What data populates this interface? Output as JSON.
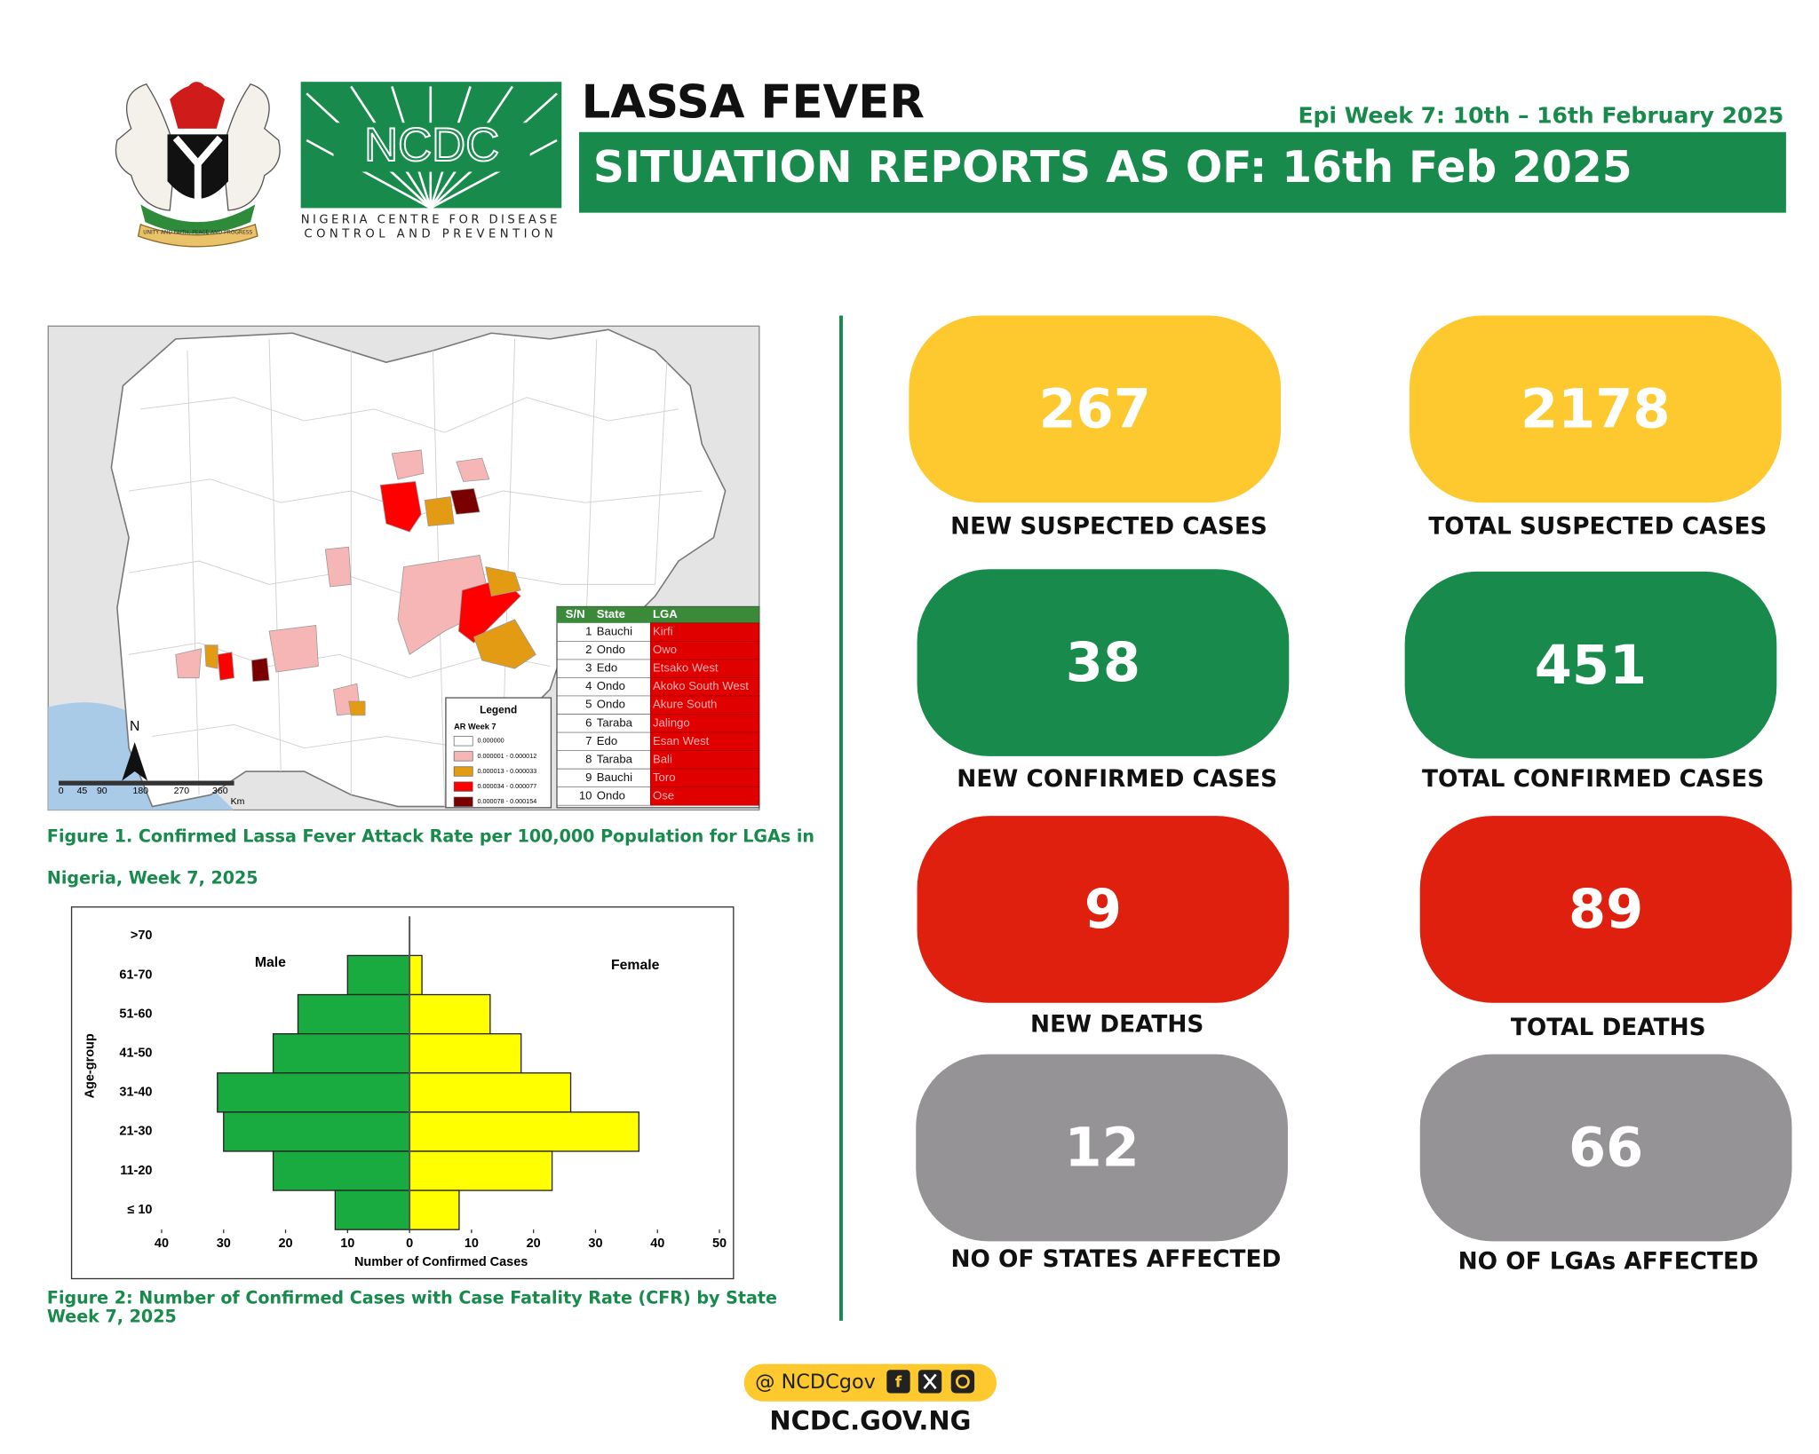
{
  "header": {
    "org_line1": "NIGERIA CENTRE FOR DISEASE",
    "org_line2": "CONTROL AND PREVENTION",
    "logo_text": "NCDC",
    "motto": "UNITY AND FAITH, PEACE AND PROGRESS",
    "title": "LASSA FEVER",
    "epi_week": "Epi Week 7: 10th – 16th February 2025",
    "banner": "SITUATION REPORTS AS OF: 16th Feb 2025"
  },
  "map": {
    "north": "N",
    "scale": [
      "0",
      "45",
      "90",
      "180",
      "270",
      "360",
      "Km"
    ],
    "legend": {
      "title": "Legend",
      "subtitle": "AR Week 7",
      "items": [
        {
          "label": "0.000000",
          "color": "#ffffff"
        },
        {
          "label": "0.000001 - 0.000012",
          "color": "#f7b6b6"
        },
        {
          "label": "0.000013 - 0.000033",
          "color": "#e39b14"
        },
        {
          "label": "0.000034 - 0.000077",
          "color": "#ff0000"
        },
        {
          "label": "0.000078 - 0.000154",
          "color": "#7a0000"
        }
      ]
    },
    "table": {
      "headers": [
        "S/N",
        "State",
        "LGA"
      ],
      "rows": [
        [
          1,
          "Bauchi",
          "Kirfi"
        ],
        [
          2,
          "Ondo",
          "Owo"
        ],
        [
          3,
          "Edo",
          "Etsako West"
        ],
        [
          4,
          "Ondo",
          "Akoko South West"
        ],
        [
          5,
          "Ondo",
          "Akure South"
        ],
        [
          6,
          "Taraba",
          "Jalingo"
        ],
        [
          7,
          "Edo",
          "Esan West"
        ],
        [
          8,
          "Taraba",
          "Bali"
        ],
        [
          9,
          "Bauchi",
          "Toro"
        ],
        [
          10,
          "Ondo",
          "Ose"
        ]
      ]
    }
  },
  "figure1_caption": [
    "Figure 1. Confirmed Lassa Fever Attack Rate per 100,000 Population for LGAs in",
    "Nigeria, Week 7, 2025"
  ],
  "chart_data": {
    "type": "pyramid",
    "x_label": "Number of Confirmed Cases",
    "y_label": "Age-group",
    "categories": [
      ">70",
      "61-70",
      "51-60",
      "41-50",
      "31-40",
      "21-30",
      "11-20",
      "≤ 10"
    ],
    "series": [
      {
        "name": "Male",
        "color": "#1aab40",
        "values": [
          0,
          10,
          18,
          22,
          31,
          30,
          22,
          12
        ]
      },
      {
        "name": "Female",
        "color": "#ffff00",
        "values": [
          0,
          2,
          13,
          18,
          26,
          37,
          23,
          8
        ]
      }
    ],
    "xlim": [
      -40,
      50
    ],
    "xticks": [
      {
        "value": -40,
        "label": "40"
      },
      {
        "value": -30,
        "label": "30"
      },
      {
        "value": -20,
        "label": "20"
      },
      {
        "value": -10,
        "label": "10"
      },
      0,
      10,
      20,
      30,
      40,
      50
    ]
  },
  "figure2_caption": [
    "Figure 2: Number of Confirmed Cases with Case Fatality Rate (CFR) by State",
    "Week 7, 2025"
  ],
  "stats": [
    {
      "value": 267,
      "label": "NEW SUSPECTED CASES",
      "color": "#fdc92f"
    },
    {
      "value": 2178,
      "label": "TOTAL SUSPECTED CASES",
      "color": "#fdc92f"
    },
    {
      "value": 38,
      "label": "NEW CONFIRMED CASES",
      "color": "#178a4c"
    },
    {
      "value": 451,
      "label": "TOTAL CONFIRMED CASES",
      "color": "#178a4c"
    },
    {
      "value": 9,
      "label": "NEW DEATHS",
      "color": "#e0200f"
    },
    {
      "value": 89,
      "label": "TOTAL DEATHS",
      "color": "#e0200f"
    },
    {
      "value": 12,
      "label": "NO OF STATES  AFFECTED",
      "color": "#969396"
    },
    {
      "value": 66,
      "label": "NO OF LGAs AFFECTED",
      "color": "#969396"
    }
  ],
  "footer": {
    "handle": "@ NCDCgov",
    "website": "NCDC.GOV.NG"
  }
}
